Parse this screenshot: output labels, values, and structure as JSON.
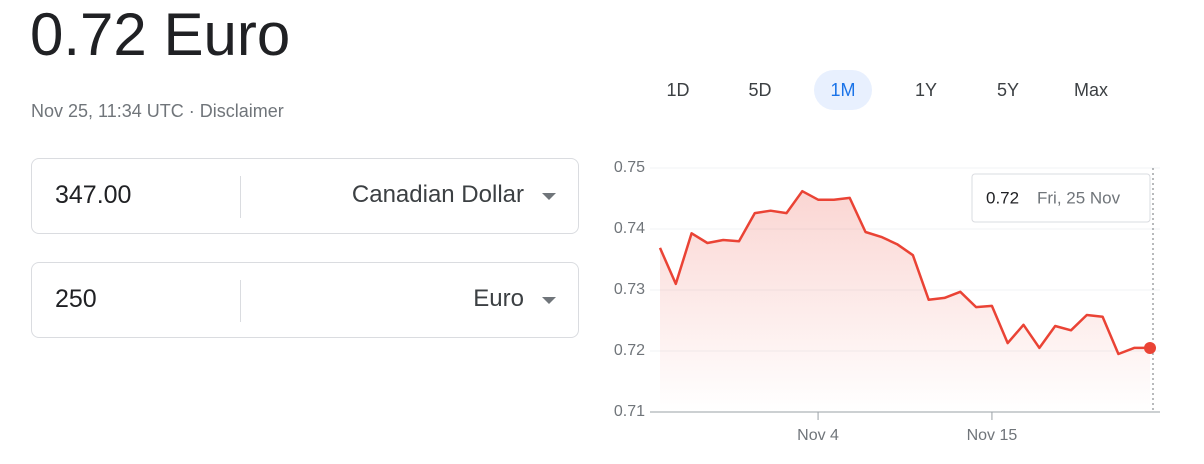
{
  "header": {
    "title": "0.72 Euro",
    "timestamp": "Nov 25, 11:34 UTC",
    "separator": "·",
    "disclaimer": "Disclaimer"
  },
  "converter": [
    {
      "amount": "347.00",
      "currency": "Canadian Dollar"
    },
    {
      "amount": "250",
      "currency": "Euro"
    }
  ],
  "ranges": {
    "options": [
      "1D",
      "5D",
      "1M",
      "1Y",
      "5Y",
      "Max"
    ],
    "selected": "1M"
  },
  "chart_data": {
    "type": "line",
    "color": "#ea4335",
    "categories": [
      null,
      null,
      null,
      null,
      null,
      null,
      null,
      null,
      null,
      null,
      "Nov 4",
      null,
      null,
      null,
      null,
      null,
      null,
      null,
      null,
      null,
      null,
      "Nov 15",
      null,
      null,
      null,
      null,
      null,
      null,
      null,
      null,
      null,
      null
    ],
    "values": [
      0.7369,
      0.731,
      0.7393,
      0.7377,
      0.7382,
      0.738,
      0.7426,
      0.743,
      0.7426,
      0.7462,
      0.7448,
      0.7448,
      0.7451,
      0.7395,
      0.7387,
      0.7375,
      0.7357,
      0.7284,
      0.7287,
      0.7297,
      0.7272,
      0.7274,
      0.7213,
      0.7243,
      0.7205,
      0.7241,
      0.7234,
      0.7259,
      0.7256,
      0.7195,
      0.7205,
      0.7205
    ],
    "ylim": [
      0.71,
      0.75
    ],
    "yticks": [
      0.71,
      0.72,
      0.73,
      0.74,
      0.75
    ],
    "grid": true,
    "tooltip": {
      "value": "0.72",
      "date": "Fri, 25 Nov"
    }
  }
}
